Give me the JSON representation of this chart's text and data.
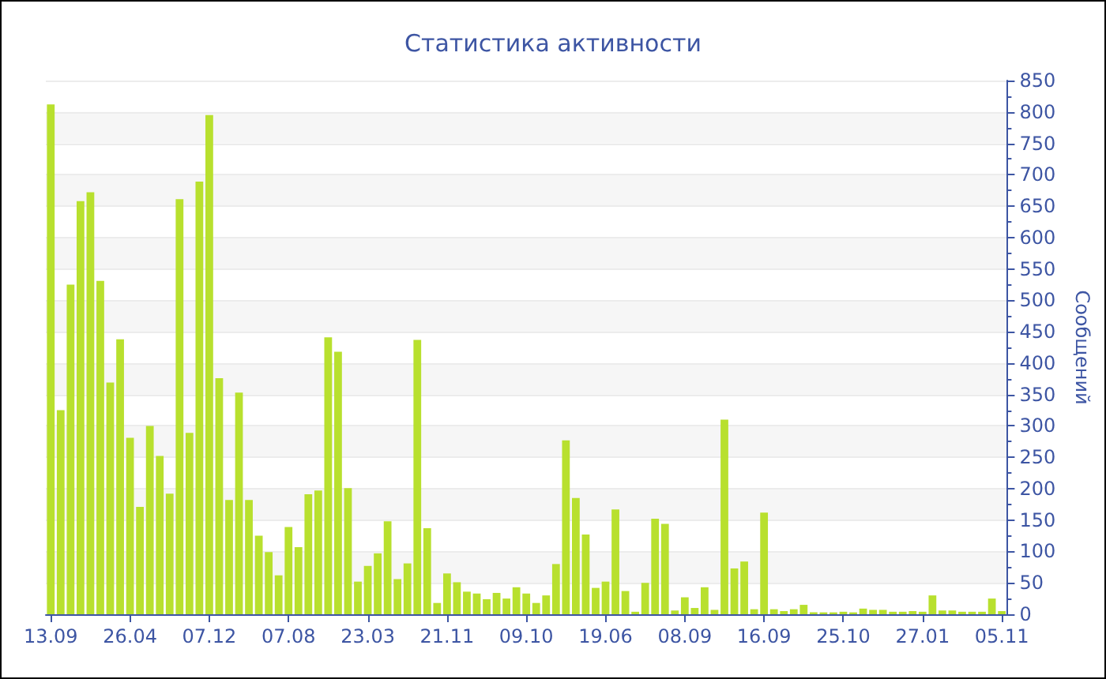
{
  "chart_data": {
    "type": "bar",
    "title": "Статистика активности",
    "ylabel": "Сообщений",
    "categories": [
      "13.09",
      null,
      null,
      null,
      null,
      null,
      null,
      null,
      "26.04",
      null,
      null,
      null,
      null,
      null,
      null,
      null,
      "07.12",
      null,
      null,
      null,
      null,
      null,
      null,
      null,
      "07.08",
      null,
      null,
      null,
      null,
      null,
      null,
      null,
      "23.03",
      null,
      null,
      null,
      null,
      null,
      null,
      null,
      "21.11",
      null,
      null,
      null,
      null,
      null,
      null,
      null,
      "09.10",
      null,
      null,
      null,
      null,
      null,
      null,
      null,
      "19.06",
      null,
      null,
      null,
      null,
      null,
      null,
      null,
      "08.09",
      null,
      null,
      null,
      null,
      null,
      null,
      null,
      "16.09",
      null,
      null,
      null,
      null,
      null,
      null,
      null,
      "25.10",
      null,
      null,
      null,
      null,
      null,
      null,
      null,
      "27.01",
      null,
      null,
      null,
      null,
      null,
      null,
      null,
      "05.11"
    ],
    "values": [
      812,
      325,
      525,
      658,
      672,
      531,
      369,
      438,
      281,
      171,
      300,
      252,
      192,
      661,
      289,
      689,
      795,
      376,
      182,
      353,
      182,
      125,
      99,
      62,
      139,
      107,
      191,
      197,
      441,
      418,
      201,
      52,
      77,
      97,
      148,
      56,
      81,
      437,
      137,
      18,
      65,
      51,
      36,
      33,
      24,
      34,
      25,
      43,
      33,
      18,
      30,
      80,
      277,
      185,
      127,
      42,
      52,
      167,
      37,
      4,
      50,
      152,
      144,
      6,
      27,
      10,
      43,
      7,
      310,
      73,
      84,
      8,
      162,
      8,
      5,
      8,
      15,
      3,
      3,
      3,
      4,
      3,
      9,
      7,
      7,
      4,
      4,
      5,
      4,
      30,
      6,
      6,
      4,
      4,
      4,
      25,
      5
    ],
    "color": "#b8e02e",
    "ylim": [
      0,
      850
    ],
    "yticks": [
      0,
      50,
      100,
      150,
      200,
      250,
      300,
      350,
      400,
      450,
      500,
      550,
      600,
      650,
      700,
      750,
      800,
      850
    ],
    "grid": "y"
  }
}
